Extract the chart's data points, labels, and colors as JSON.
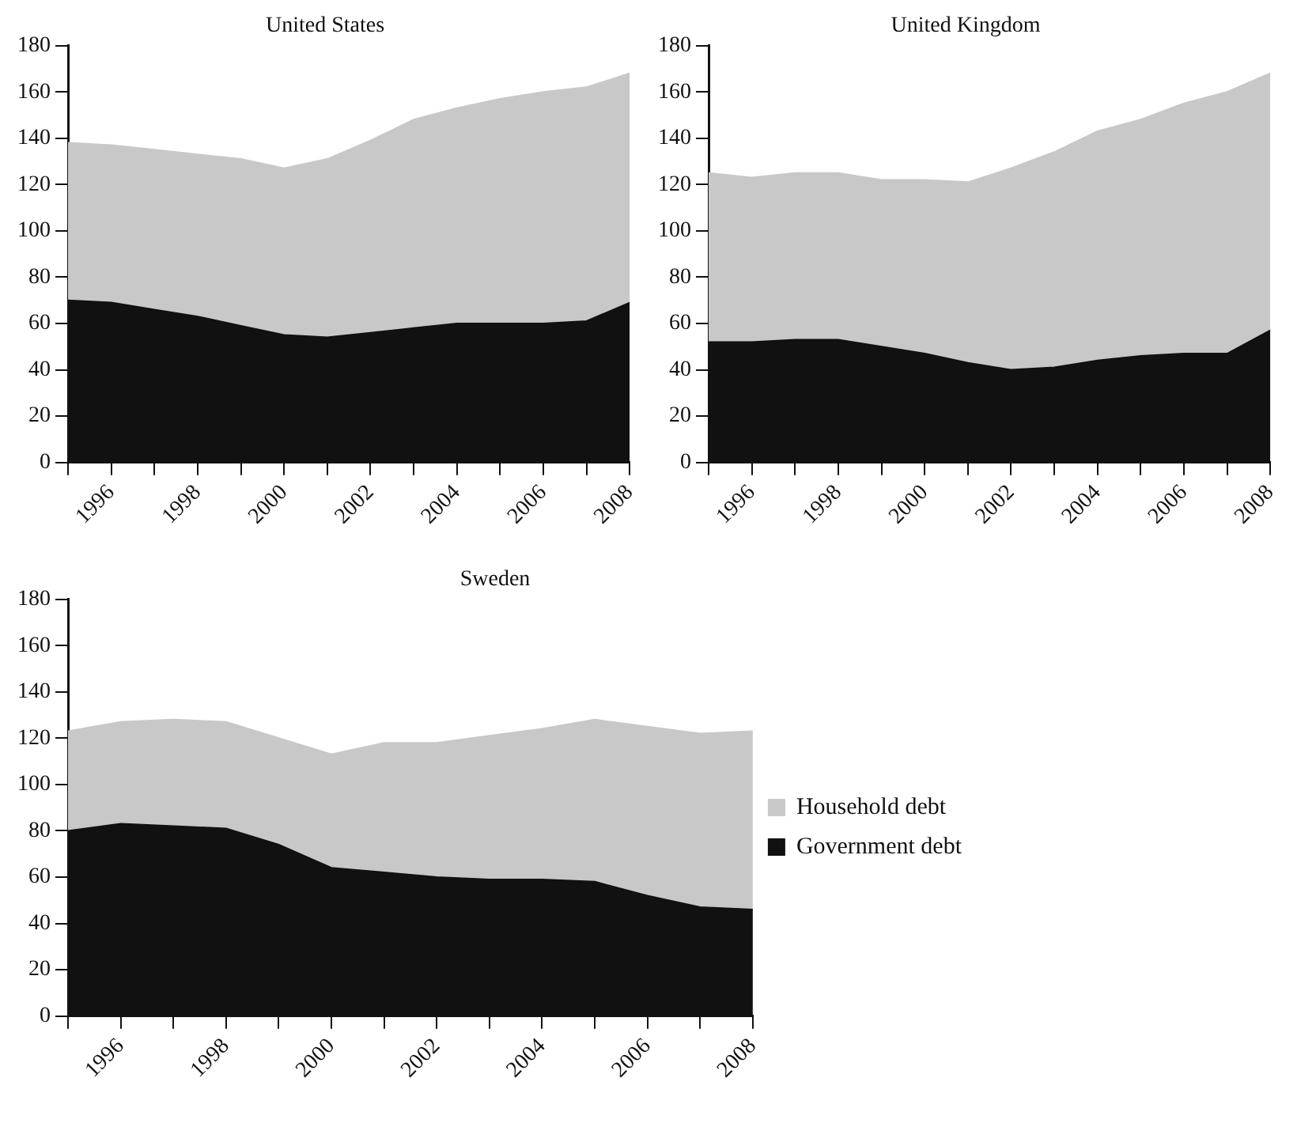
{
  "chart_data": [
    {
      "type": "area",
      "title": "United States",
      "x": [
        1995,
        1996,
        1997,
        1998,
        1999,
        2000,
        2001,
        2002,
        2003,
        2004,
        2005,
        2006,
        2007,
        2008
      ],
      "stacked": true,
      "legend": false,
      "grid": false,
      "xlim": [
        1995,
        2008
      ],
      "xticks": [
        {
          "value": 1995,
          "label": null
        },
        1996,
        {
          "value": 1997,
          "label": null
        },
        1998,
        {
          "value": 1999,
          "label": null
        },
        2000,
        {
          "value": 2001,
          "label": null
        },
        2002,
        {
          "value": 2003,
          "label": null
        },
        2004,
        {
          "value": 2005,
          "label": null
        },
        2006,
        {
          "value": 2007,
          "label": null
        },
        2008
      ],
      "ylim": [
        0,
        180
      ],
      "yticks": [
        0,
        20,
        40,
        60,
        80,
        100,
        120,
        140,
        160,
        180
      ],
      "series": [
        {
          "color": "#111111",
          "values": [
            70,
            69,
            66,
            63,
            59,
            55,
            54,
            56,
            58,
            60,
            60,
            60,
            61,
            69
          ]
        },
        {
          "color": "#c8c8c8",
          "values": [
            68,
            68,
            69,
            70,
            72,
            72,
            77,
            83,
            90,
            93,
            97,
            100,
            101,
            99
          ]
        }
      ]
    },
    {
      "type": "area",
      "title": "United Kingdom",
      "x": [
        1995,
        1996,
        1997,
        1998,
        1999,
        2000,
        2001,
        2002,
        2003,
        2004,
        2005,
        2006,
        2007,
        2008
      ],
      "stacked": true,
      "legend": false,
      "grid": false,
      "xlim": [
        1995,
        2008
      ],
      "xticks": [
        {
          "value": 1995,
          "label": null
        },
        1996,
        {
          "value": 1997,
          "label": null
        },
        1998,
        {
          "value": 1999,
          "label": null
        },
        2000,
        {
          "value": 2001,
          "label": null
        },
        2002,
        {
          "value": 2003,
          "label": null
        },
        2004,
        {
          "value": 2005,
          "label": null
        },
        2006,
        {
          "value": 2007,
          "label": null
        },
        2008
      ],
      "ylim": [
        0,
        180
      ],
      "yticks": [
        0,
        20,
        40,
        60,
        80,
        100,
        120,
        140,
        160,
        180
      ],
      "series": [
        {
          "color": "#111111",
          "values": [
            52,
            52,
            53,
            53,
            50,
            47,
            43,
            40,
            41,
            44,
            46,
            47,
            47,
            57
          ]
        },
        {
          "color": "#c8c8c8",
          "values": [
            73,
            71,
            72,
            72,
            72,
            75,
            78,
            87,
            93,
            99,
            102,
            108,
            113,
            111
          ]
        }
      ]
    },
    {
      "type": "area",
      "title": "Sweden",
      "x": [
        1995,
        1996,
        1997,
        1998,
        1999,
        2000,
        2001,
        2002,
        2003,
        2004,
        2005,
        2006,
        2007,
        2008
      ],
      "stacked": true,
      "legend": "right",
      "grid": false,
      "xlim": [
        1995,
        2008
      ],
      "xticks": [
        {
          "value": 1995,
          "label": null
        },
        1996,
        {
          "value": 1997,
          "label": null
        },
        1998,
        {
          "value": 1999,
          "label": null
        },
        2000,
        {
          "value": 2001,
          "label": null
        },
        2002,
        {
          "value": 2003,
          "label": null
        },
        2004,
        {
          "value": 2005,
          "label": null
        },
        2006,
        {
          "value": 2007,
          "label": null
        },
        2008
      ],
      "ylim": [
        0,
        180
      ],
      "yticks": [
        0,
        20,
        40,
        60,
        80,
        100,
        120,
        140,
        160,
        180
      ],
      "series": [
        {
          "name": "Government debt",
          "color": "#111111",
          "values": [
            80,
            83,
            82,
            81,
            74,
            64,
            62,
            60,
            59,
            59,
            58,
            52,
            47,
            46
          ]
        },
        {
          "name": "Household debt",
          "color": "#c8c8c8",
          "values": [
            43,
            44,
            46,
            46,
            46,
            49,
            56,
            58,
            62,
            65,
            70,
            73,
            75,
            77
          ]
        }
      ]
    }
  ]
}
